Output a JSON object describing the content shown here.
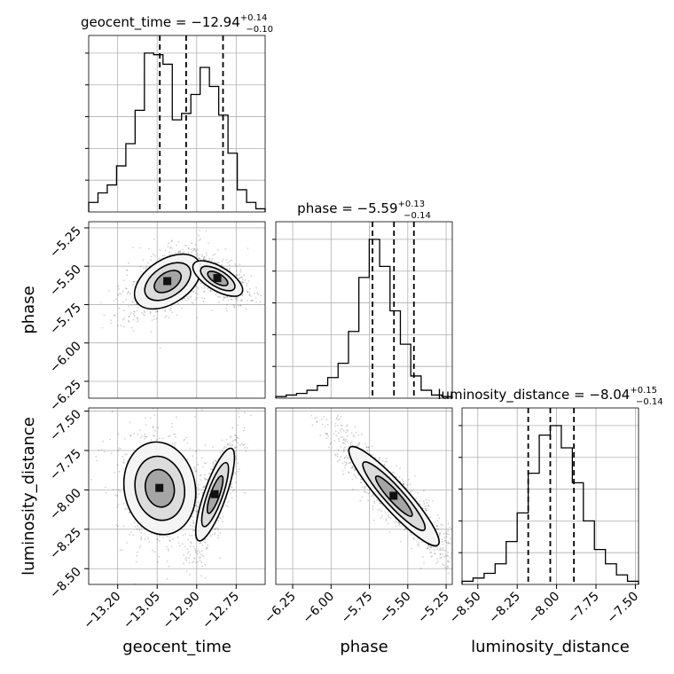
{
  "chart_data": {
    "type": "corner",
    "parameters": [
      {
        "name": "geocent_time",
        "title": "geocent_time = −12.94",
        "title_upper": "+0.14",
        "title_lower": "−0.10",
        "range": [
          -13.31,
          -12.64
        ],
        "ticks": [
          "−13.20",
          "−13.05",
          "−12.90",
          "−12.75"
        ],
        "tick_values": [
          -13.2,
          -13.05,
          -12.9,
          -12.75
        ],
        "quantiles": [
          -13.04,
          -12.94,
          -12.8
        ],
        "hist_counts": [
          0.06,
          0.12,
          0.17,
          0.29,
          0.43,
          0.64,
          1.0,
          0.99,
          0.93,
          0.58,
          0.62,
          0.74,
          0.91,
          0.79,
          0.61,
          0.37,
          0.14,
          0.06,
          0.02
        ]
      },
      {
        "name": "phase",
        "title": "phase = −5.59",
        "title_upper": "+0.13",
        "title_lower": "−0.14",
        "range": [
          -6.36,
          -5.21
        ],
        "ticks": [
          "−6.25",
          "−6.00",
          "−5.75",
          "−5.50",
          "−5.25"
        ],
        "tick_values": [
          -6.25,
          -6.0,
          -5.75,
          -5.5,
          -5.25
        ],
        "quantiles": [
          -5.73,
          -5.59,
          -5.46
        ],
        "hist_counts": [
          0.01,
          0.02,
          0.03,
          0.05,
          0.08,
          0.13,
          0.22,
          0.42,
          0.76,
          1.0,
          0.83,
          0.55,
          0.34,
          0.14,
          0.05,
          0.02,
          0.01
        ]
      },
      {
        "name": "luminosity_distance",
        "title": "luminosity_distance = −8.04",
        "title_upper": "+0.15",
        "title_lower": "−0.14",
        "range": [
          -8.6,
          -7.48
        ],
        "ticks": [
          "−8.50",
          "−8.25",
          "−8.00",
          "−7.75",
          "−7.50"
        ],
        "tick_values": [
          -8.5,
          -8.25,
          -8.0,
          -7.75,
          -7.5
        ],
        "quantiles": [
          -8.18,
          -8.04,
          -7.89
        ],
        "hist_counts": [
          0.02,
          0.04,
          0.07,
          0.13,
          0.27,
          0.45,
          0.7,
          0.94,
          1.0,
          0.86,
          0.64,
          0.4,
          0.22,
          0.13,
          0.06,
          0.02
        ]
      }
    ],
    "pairs": [
      {
        "x": "geocent_time",
        "y": "phase",
        "modes": [
          {
            "x": -13.01,
            "y": -5.6,
            "sx": 0.06,
            "sy": 0.085,
            "rho": 0.45,
            "w": 0.55
          },
          {
            "x": -12.82,
            "y": -5.58,
            "sx": 0.045,
            "sy": 0.055,
            "rho": -0.65,
            "w": 0.45
          }
        ]
      },
      {
        "x": "geocent_time",
        "y": "luminosity_distance",
        "modes": [
          {
            "x": -13.04,
            "y": -7.99,
            "sx": 0.065,
            "sy": 0.14,
            "rho": -0.1,
            "w": 0.55
          },
          {
            "x": -12.83,
            "y": -8.03,
            "sx": 0.035,
            "sy": 0.14,
            "rho": 0.8,
            "w": 0.45
          }
        ]
      },
      {
        "x": "phase",
        "y": "luminosity_distance",
        "modes": [
          {
            "x": -5.59,
            "y": -8.04,
            "sx": 0.14,
            "sy": 0.15,
            "rho": -0.92,
            "w": 1.0
          }
        ]
      }
    ],
    "grid": true,
    "quantile_lines": "dashed"
  }
}
